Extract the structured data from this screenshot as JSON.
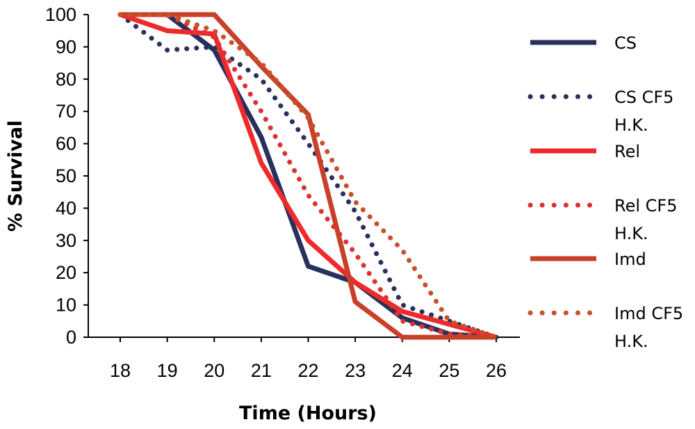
{
  "chart_data": {
    "type": "line",
    "xlabel": "Time (Hours)",
    "ylabel": "% Survival",
    "x": [
      18,
      19,
      20,
      21,
      22,
      23,
      24,
      25,
      26
    ],
    "xlim": [
      18,
      26
    ],
    "ylim": [
      0,
      100
    ],
    "yticks": [
      0,
      10,
      20,
      30,
      40,
      50,
      60,
      70,
      80,
      90,
      100
    ],
    "grid": false,
    "legend_position": "right",
    "series": [
      {
        "name": "CS",
        "lines": [
          "CS"
        ],
        "style": "solid",
        "color": "#28305e",
        "values": [
          100,
          100,
          89,
          62,
          22,
          17,
          6,
          1,
          0
        ]
      },
      {
        "name": "CS CF5 H.K.",
        "lines": [
          "CS CF5",
          "H.K."
        ],
        "style": "dotted",
        "color": "#28305e",
        "values": [
          100,
          89,
          90,
          80,
          60,
          39,
          10,
          5,
          0
        ]
      },
      {
        "name": "Rel",
        "lines": [
          "Rel"
        ],
        "style": "solid",
        "color": "#ee2a2a",
        "values": [
          100,
          95,
          94,
          54,
          30,
          17,
          8,
          4,
          0
        ]
      },
      {
        "name": "Rel CF5 H.K.",
        "lines": [
          "Rel CF5",
          "H.K."
        ],
        "style": "dotted",
        "color": "#e03030",
        "values": [
          100,
          100,
          93,
          70,
          44,
          26,
          5,
          1,
          0
        ]
      },
      {
        "name": "Imd",
        "lines": [
          "Imd"
        ],
        "style": "solid",
        "color": "#c8402a",
        "values": [
          100,
          100,
          100,
          84,
          69,
          11,
          0,
          0,
          0
        ]
      },
      {
        "name": "Imd CF5 H.K.",
        "lines": [
          "Imd CF5",
          "H.K."
        ],
        "style": "dotted",
        "color": "#c8502a",
        "values": [
          100,
          100,
          95,
          85,
          68,
          42,
          27,
          5,
          0
        ]
      }
    ]
  }
}
